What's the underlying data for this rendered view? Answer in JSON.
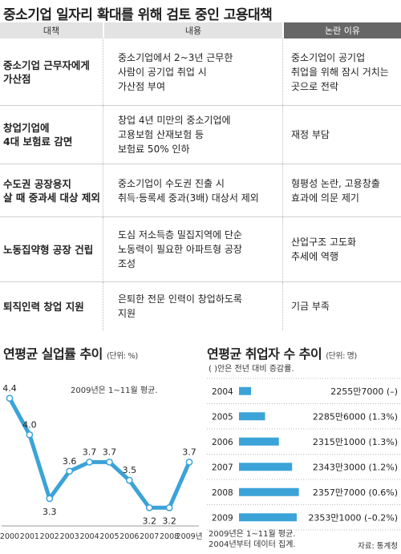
{
  "page_title": "중소기업 일자리 확대를 위해 검토 중인 고용대책",
  "table": {
    "headers": [
      "대책",
      "내용",
      "논란 이유"
    ],
    "rows": [
      {
        "measure": "중소기업 근무자에게\n가산점",
        "content": "중소기업에서 2~3년 근무한\n사람이 공기업 취업 시\n가산점 부여",
        "controversy": "중소기업이 공기업\n취업을 위해 잠시 거치는\n곳으로 전락"
      },
      {
        "measure": "창업기업에\n4대 보험료 감면",
        "content": "창업 4년 미만의 중소기업에\n고용보험 산재보험 등\n보험료 50% 인하",
        "controversy": "재정 부담"
      },
      {
        "measure": "수도권 공장용지\n살 때 중과세 대상 제외",
        "content": "중소기업이 수도권 진출 시\n취득·등록세 중과(3배) 대상서 제외",
        "controversy": "형평성 논란, 고용창출\n효과에 의문 제기"
      },
      {
        "measure": "노동집약형 공장 건립",
        "content": "도심 저소득층 밀집지역에 단순\n노동력이 필요한 아파트형 공장\n조성",
        "controversy": "산업구조 고도화\n추세에 역행"
      },
      {
        "measure": "퇴직인력 창업 지원",
        "content": "은퇴한 전문 인력이 창업하도록\n지원",
        "controversy": "기금 부족"
      }
    ]
  },
  "chart_data": [
    {
      "type": "line",
      "title": "연평균 실업률 추이",
      "unit_label": "(단위: %)",
      "note": "2009년은 1~11월 평균.",
      "categories": [
        "2000",
        "2001",
        "2002",
        "2003",
        "2004",
        "2005",
        "2006",
        "2007",
        "2008",
        "2009년"
      ],
      "values": [
        4.4,
        4.0,
        3.3,
        3.6,
        3.7,
        3.7,
        3.5,
        3.2,
        3.2,
        3.7
      ],
      "value_labels": [
        "4.4",
        "4.0",
        "3.3",
        "3.6",
        "3.7",
        "3.7",
        "3.5",
        "3.2",
        "3.2",
        "3.7"
      ],
      "ylim": [
        3.0,
        4.6
      ],
      "grid": false,
      "colors": {
        "line": "#3ba3d8",
        "marker_fill": "#ffffff"
      }
    },
    {
      "type": "bar",
      "orientation": "horizontal",
      "title": "연평균 취업자 수 추이",
      "unit_label": "(단위: 명)",
      "subtitle": "( )안은 전년 대비 증감률.",
      "categories": [
        "2004",
        "2005",
        "2006",
        "2007",
        "2008",
        "2009"
      ],
      "values": [
        22557000,
        22856000,
        23151000,
        23433000,
        23577000,
        23531000
      ],
      "value_labels": [
        "2255만7000 (–)",
        "2285만6000 (1.3%)",
        "2315만1000 (1.3%)",
        "2343만3000 (1.2%)",
        "2357만7000 (0.6%)",
        "2353만1000 (–0.2%)"
      ],
      "change_pct": [
        null,
        1.3,
        1.3,
        1.2,
        0.6,
        -0.2
      ],
      "notes": [
        "2009년은 1~11월 평균.",
        "2004년부터 데이터 집계."
      ],
      "source": "자료: 통계청",
      "colors": {
        "bar": "#3ba3d8"
      }
    }
  ]
}
